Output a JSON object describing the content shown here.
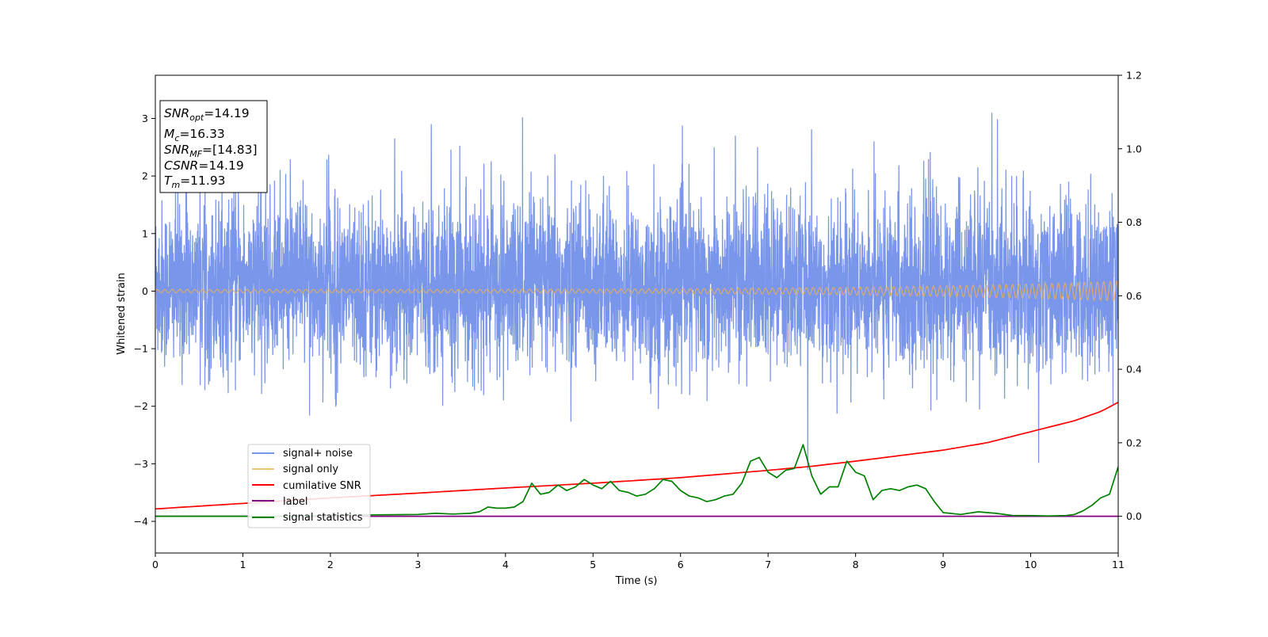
{
  "chart_data": {
    "type": "line",
    "xlabel": "Time (s)",
    "ylabel": "Whitened strain",
    "xlim": [
      0,
      11
    ],
    "ylim": [
      -4.55,
      3.75
    ],
    "y2lim": [
      -0.1,
      1.2
    ],
    "grid": false,
    "legend_position": "lower-left",
    "x_ticks": [
      "0",
      "1",
      "2",
      "3",
      "4",
      "5",
      "6",
      "7",
      "8",
      "9",
      "10",
      "11"
    ],
    "y_ticks": [
      "3",
      "2",
      "1",
      "0",
      "−1",
      "−2",
      "−3",
      "−4"
    ],
    "y_tick_values": [
      3,
      2,
      1,
      0,
      -1,
      -2,
      -3,
      -4
    ],
    "y2_ticks": [
      "1.2",
      "1.0",
      "0.8",
      "0.6",
      "0.4",
      "0.2",
      "0.0"
    ],
    "y2_tick_values": [
      1.2,
      1.0,
      0.8,
      0.6,
      0.4,
      0.2,
      0.0
    ],
    "info_box": {
      "snr_opt": {
        "main": "SNR",
        "sub": "opt",
        "value": "=14.19"
      },
      "mc": {
        "main": "M",
        "sub": "c",
        "value": "=16.33"
      },
      "snr_mf": {
        "main": "SNR",
        "sub": "MF",
        "value": "=[14.83]"
      },
      "csnr": {
        "main": "CSNR",
        "value": "=14.19"
      },
      "tm": {
        "main": "T",
        "sub": "m",
        "value": "=11.93"
      }
    },
    "series": [
      {
        "name": "signal+ noise",
        "axis": "left",
        "color": "#4169e1",
        "description_values": {
          "typical_range": [
            -1.6,
            2.0
          ],
          "max_spike": 3.1,
          "min_spike": -3.1
        }
      },
      {
        "name": "signal only",
        "axis": "left",
        "color": "#f0b050",
        "amplitude_start": 0.03,
        "amplitude_end": 0.17
      },
      {
        "name": "cumilative SNR",
        "axis": "right",
        "color": "#ff0000",
        "x": [
          0,
          1,
          2,
          3,
          4,
          5,
          6,
          7,
          7.5,
          8,
          8.5,
          9,
          9.5,
          10,
          10.5,
          10.8,
          11
        ],
        "values": [
          0.02,
          0.035,
          0.05,
          0.063,
          0.077,
          0.09,
          0.105,
          0.125,
          0.136,
          0.15,
          0.165,
          0.18,
          0.2,
          0.23,
          0.26,
          0.285,
          0.31
        ]
      },
      {
        "name": "label",
        "axis": "right",
        "color": "#800080",
        "x": [
          0,
          11
        ],
        "values": [
          0.0,
          0.0
        ]
      },
      {
        "name": "signal statistics",
        "axis": "right",
        "color": "#008000",
        "x": [
          0,
          0.5,
          1,
          1.5,
          2,
          2.5,
          3,
          3.2,
          3.4,
          3.6,
          3.7,
          3.8,
          3.9,
          4.0,
          4.1,
          4.2,
          4.3,
          4.4,
          4.5,
          4.6,
          4.7,
          4.8,
          4.9,
          5.0,
          5.1,
          5.2,
          5.3,
          5.4,
          5.5,
          5.6,
          5.7,
          5.8,
          5.9,
          6.0,
          6.1,
          6.2,
          6.3,
          6.4,
          6.5,
          6.6,
          6.7,
          6.8,
          6.9,
          7.0,
          7.1,
          7.2,
          7.3,
          7.4,
          7.5,
          7.6,
          7.7,
          7.8,
          7.9,
          8.0,
          8.1,
          8.2,
          8.3,
          8.4,
          8.5,
          8.6,
          8.7,
          8.8,
          8.9,
          9.0,
          9.2,
          9.4,
          9.6,
          9.8,
          10.0,
          10.2,
          10.4,
          10.5,
          10.6,
          10.7,
          10.8,
          10.9,
          11.0
        ],
        "values": [
          0.0,
          0.0,
          0.0,
          0.0,
          0.002,
          0.004,
          0.005,
          0.008,
          0.006,
          0.008,
          0.012,
          0.025,
          0.022,
          0.022,
          0.025,
          0.04,
          0.09,
          0.06,
          0.065,
          0.085,
          0.07,
          0.08,
          0.1,
          0.085,
          0.075,
          0.095,
          0.07,
          0.065,
          0.055,
          0.06,
          0.075,
          0.1,
          0.095,
          0.07,
          0.055,
          0.05,
          0.04,
          0.045,
          0.055,
          0.06,
          0.09,
          0.15,
          0.16,
          0.12,
          0.105,
          0.125,
          0.13,
          0.195,
          0.11,
          0.06,
          0.08,
          0.08,
          0.15,
          0.12,
          0.11,
          0.045,
          0.07,
          0.075,
          0.07,
          0.08,
          0.085,
          0.075,
          0.04,
          0.01,
          0.005,
          0.012,
          0.008,
          0.002,
          0.002,
          0.001,
          0.002,
          0.005,
          0.015,
          0.03,
          0.05,
          0.06,
          0.135
        ]
      }
    ]
  }
}
